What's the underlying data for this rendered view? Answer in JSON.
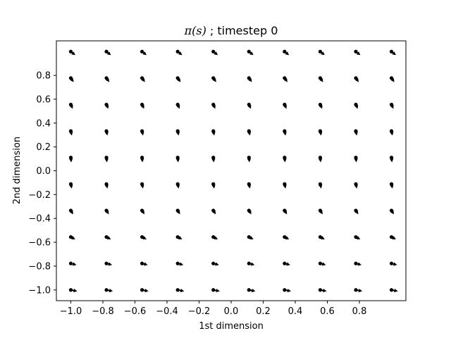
{
  "chart_data": {
    "type": "quiver",
    "title": {
      "math": "π(s)",
      "text": " ; timestep 0"
    },
    "xlabel": "1st dimension",
    "ylabel": "2nd dimension",
    "xlim": [
      -1.09,
      1.09
    ],
    "ylim": [
      -1.09,
      1.09
    ],
    "xticks": [
      -1.0,
      -0.8,
      -0.6,
      -0.4,
      -0.2,
      0.0,
      0.2,
      0.4,
      0.6,
      0.8
    ],
    "xtick_labels": [
      "−1.0",
      "−0.8",
      "−0.6",
      "−0.4",
      "−0.2",
      "0.0",
      "0.2",
      "0.4",
      "0.6",
      "0.8"
    ],
    "yticks": [
      -1.0,
      -0.8,
      -0.6,
      -0.4,
      -0.2,
      0.0,
      0.2,
      0.4,
      0.6,
      0.8
    ],
    "ytick_labels": [
      "−1.0",
      "−0.8",
      "−0.6",
      "−0.4",
      "−0.2",
      "0.0",
      "0.2",
      "0.4",
      "0.6",
      "0.8"
    ],
    "grid": false,
    "x": [
      -1.0,
      -0.7778,
      -0.5556,
      -0.3333,
      -0.1111,
      0.1111,
      0.3333,
      0.5556,
      0.7778,
      1.0
    ],
    "y": [
      -1.0,
      -0.7778,
      -0.5556,
      -0.3333,
      -0.1111,
      0.1111,
      0.3333,
      0.5556,
      0.7778,
      1.0
    ],
    "vector_field": {
      "description_values": "u,v direction components per point (data units); computed grid below",
      "u_rows_bottom_to_top": [
        [
          0.04,
          0.04,
          0.04,
          0.04,
          0.04,
          0.04,
          0.04,
          0.04,
          0.04,
          0.04
        ],
        [
          0.035,
          0.035,
          0.035,
          0.035,
          0.035,
          0.035,
          0.035,
          0.035,
          0.035,
          0.035
        ],
        [
          0.028,
          0.028,
          0.028,
          0.028,
          0.028,
          0.028,
          0.028,
          0.028,
          0.028,
          0.028
        ],
        [
          0.015,
          0.015,
          0.015,
          0.015,
          0.015,
          0.015,
          0.015,
          0.015,
          0.015,
          0.015
        ],
        [
          0.006,
          0.006,
          0.006,
          0.006,
          0.006,
          0.006,
          0.006,
          0.006,
          0.006,
          0.006
        ],
        [
          0.003,
          0.003,
          0.003,
          0.003,
          0.003,
          0.003,
          0.003,
          0.003,
          0.003,
          0.003
        ],
        [
          0.006,
          0.006,
          0.006,
          0.006,
          0.006,
          0.006,
          0.006,
          0.006,
          0.006,
          0.006
        ],
        [
          0.012,
          0.012,
          0.012,
          0.012,
          0.012,
          0.012,
          0.012,
          0.012,
          0.012,
          0.012
        ],
        [
          0.018,
          0.018,
          0.018,
          0.018,
          0.018,
          0.018,
          0.018,
          0.018,
          0.018,
          0.018
        ],
        [
          0.028,
          0.028,
          0.028,
          0.028,
          0.028,
          0.028,
          0.028,
          0.028,
          0.028,
          0.028
        ]
      ],
      "v_rows_bottom_to_top": [
        [
          -0.01,
          -0.01,
          -0.01,
          -0.01,
          -0.01,
          -0.01,
          -0.01,
          -0.01,
          -0.01,
          -0.01
        ],
        [
          -0.012,
          -0.012,
          -0.012,
          -0.012,
          -0.012,
          -0.012,
          -0.012,
          -0.012,
          -0.012,
          -0.012
        ],
        [
          -0.02,
          -0.02,
          -0.02,
          -0.02,
          -0.02,
          -0.02,
          -0.02,
          -0.02,
          -0.02,
          -0.02
        ],
        [
          -0.032,
          -0.032,
          -0.032,
          -0.032,
          -0.032,
          -0.032,
          -0.032,
          -0.032,
          -0.032,
          -0.032
        ],
        [
          -0.038,
          -0.038,
          -0.038,
          -0.038,
          -0.038,
          -0.038,
          -0.038,
          -0.038,
          -0.038,
          -0.038
        ],
        [
          -0.04,
          -0.04,
          -0.04,
          -0.04,
          -0.04,
          -0.04,
          -0.04,
          -0.04,
          -0.04,
          -0.04
        ],
        [
          -0.038,
          -0.038,
          -0.038,
          -0.038,
          -0.038,
          -0.038,
          -0.038,
          -0.038,
          -0.038,
          -0.038
        ],
        [
          -0.036,
          -0.036,
          -0.036,
          -0.036,
          -0.036,
          -0.036,
          -0.036,
          -0.036,
          -0.036,
          -0.036
        ],
        [
          -0.034,
          -0.034,
          -0.034,
          -0.034,
          -0.034,
          -0.034,
          -0.034,
          -0.034,
          -0.034,
          -0.034
        ],
        [
          -0.03,
          -0.03,
          -0.03,
          -0.03,
          -0.03,
          -0.03,
          -0.03,
          -0.03,
          -0.03,
          -0.03
        ]
      ]
    },
    "colors": {
      "arrows": "#000000",
      "axes": "#000000",
      "background": "#ffffff"
    }
  }
}
